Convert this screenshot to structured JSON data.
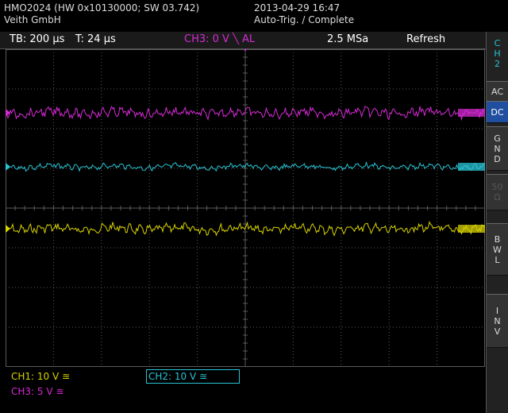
{
  "header": {
    "model_line": "HMO2024 (HW 0x10130000; SW 03.742)",
    "company": "Veith GmbH",
    "datetime": "2013-04-29 16:47",
    "status": "Auto-Trig. / Complete"
  },
  "info_bar": {
    "timebase": "TB: 200 µs",
    "trigger_time": "T: 24 µs",
    "trigger_source": "CH3: 0 V ╲ AL",
    "sample_rate": "2.5 MSa",
    "mode": "Refresh"
  },
  "side_menu": {
    "channel_label": [
      "C",
      "H",
      "2"
    ],
    "buttons": [
      {
        "id": "ac",
        "lines": [
          "AC"
        ],
        "active": false,
        "enabled": true
      },
      {
        "id": "dc",
        "lines": [
          "DC"
        ],
        "active": true,
        "enabled": true
      },
      {
        "id": "gnd",
        "lines": [
          "G",
          "N",
          "D"
        ],
        "active": false,
        "enabled": true
      },
      {
        "id": "50ohm",
        "lines": [
          "50",
          "Ω"
        ],
        "active": false,
        "enabled": false
      },
      {
        "id": "bwl",
        "lines": [
          "B",
          "W",
          "L"
        ],
        "active": false,
        "enabled": true
      },
      {
        "id": "inv",
        "lines": [
          "I",
          "N",
          "V"
        ],
        "active": false,
        "enabled": true
      }
    ]
  },
  "channels": [
    {
      "id": "CH1",
      "label": "CH1: 10 V ≊",
      "color": "#d8d200",
      "marker": "1"
    },
    {
      "id": "CH2",
      "label": "CH2: 10 V ≊",
      "color": "#29c4d4",
      "marker": "2"
    },
    {
      "id": "CH3",
      "label": "CH3: 5 V ≊",
      "color": "#d42ad4",
      "marker": "3"
    }
  ],
  "colors": {
    "grid": "#5a5a5a",
    "background": "#000000",
    "trigger_color": "#d42ad4",
    "active_button": "#1f4f9e"
  }
}
